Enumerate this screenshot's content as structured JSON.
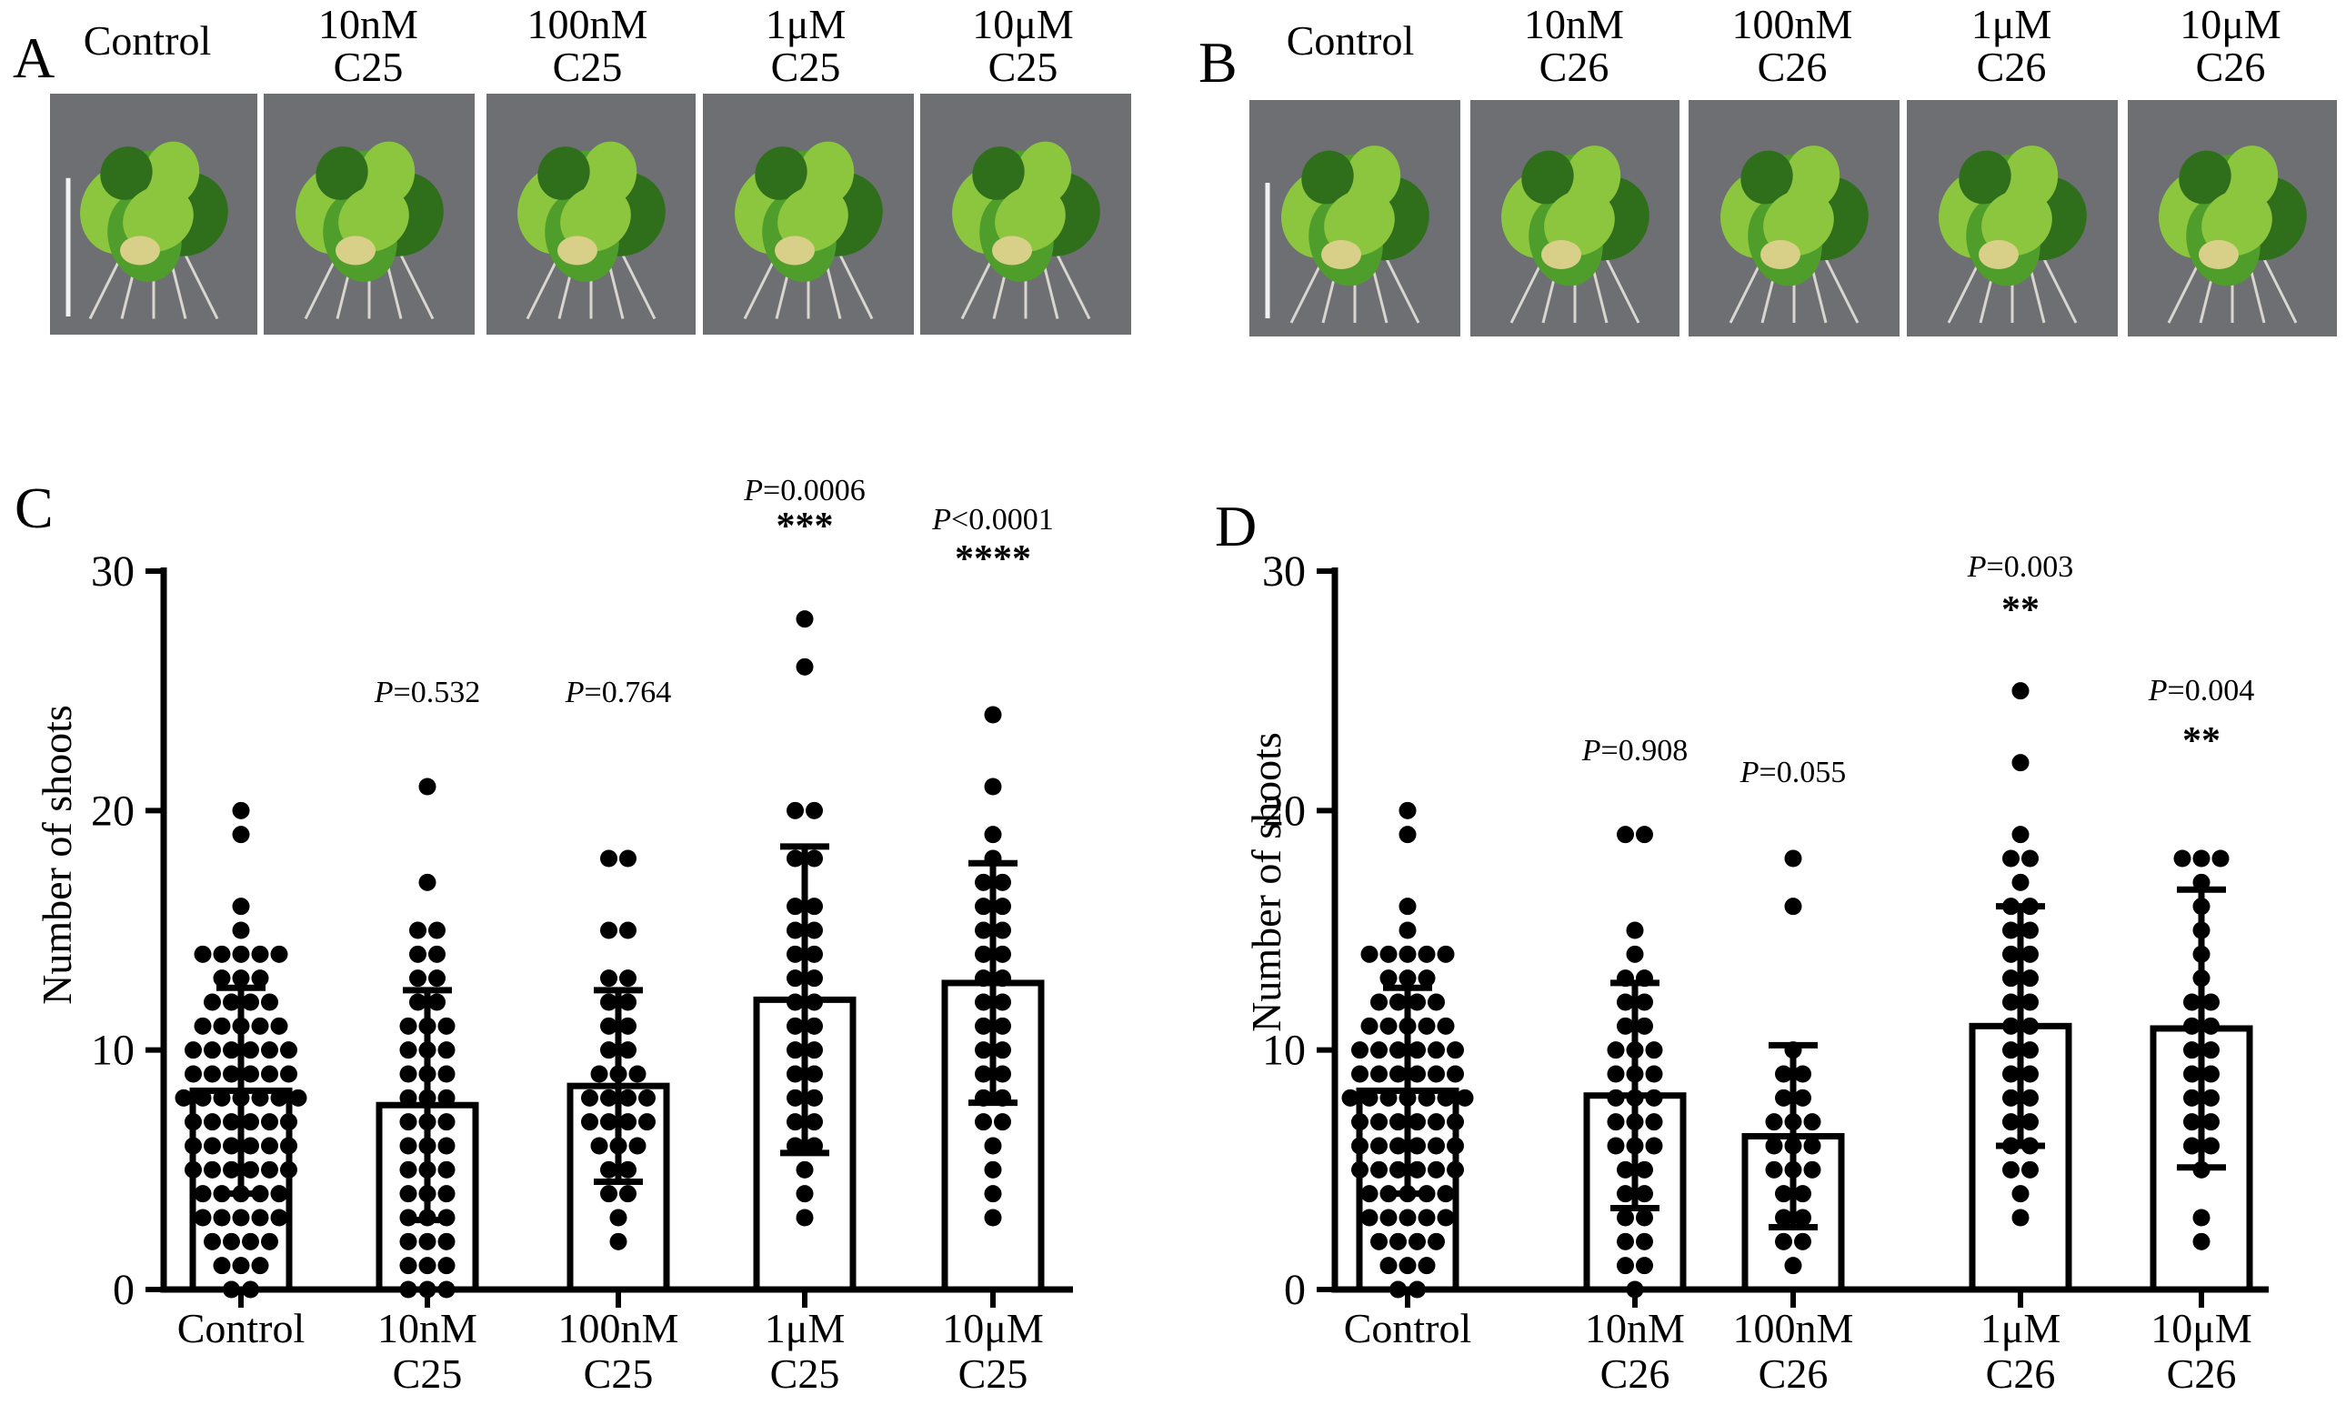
{
  "panels": {
    "A": {
      "letter": "A",
      "photos": [
        {
          "line1": "Control",
          "line2": ""
        },
        {
          "line1": "10nM",
          "line2": "C25"
        },
        {
          "line1": "100nM",
          "line2": "C25"
        },
        {
          "line1": "1μM",
          "line2": "C25"
        },
        {
          "line1": "10μM",
          "line2": "C25"
        }
      ]
    },
    "B": {
      "letter": "B",
      "photos": [
        {
          "line1": "Control",
          "line2": ""
        },
        {
          "line1": "10nM",
          "line2": "C26"
        },
        {
          "line1": "100nM",
          "line2": "C26"
        },
        {
          "line1": "1μM",
          "line2": "C26"
        },
        {
          "line1": "10μM",
          "line2": "C26"
        }
      ]
    }
  },
  "chart_data": [
    {
      "panel": "C",
      "type": "bar",
      "ylabel": "Number of shoots",
      "ylim": [
        0,
        30
      ],
      "yticks": [
        0,
        10,
        20,
        30
      ],
      "categories": [
        {
          "line1": "Control",
          "line2": ""
        },
        {
          "line1": "10nM",
          "line2": "C25"
        },
        {
          "line1": "100nM",
          "line2": "C25"
        },
        {
          "line1": "1μM",
          "line2": "C25"
        },
        {
          "line1": "10μM",
          "line2": "C25"
        }
      ],
      "means": [
        8.3,
        7.7,
        8.5,
        12.1,
        12.8
      ],
      "sd": [
        4.3,
        4.8,
        4.0,
        6.4,
        5.0
      ],
      "annotations": [
        {
          "p_label": "",
          "p_value": "",
          "stars": ""
        },
        {
          "p_label": "P",
          "p_value": "=0.532",
          "stars": ""
        },
        {
          "p_label": "P",
          "p_value": "=0.764",
          "stars": ""
        },
        {
          "p_label": "P",
          "p_value": "=0.0006",
          "stars": "***"
        },
        {
          "p_label": "P",
          "p_value": "<0.0001",
          "stars": "****"
        }
      ],
      "points": [
        [
          20,
          19,
          16,
          15,
          14,
          14,
          14,
          14,
          14,
          13,
          13,
          13,
          12,
          12,
          12,
          12,
          11,
          11,
          11,
          11,
          11,
          10,
          10,
          10,
          10,
          10,
          10,
          9,
          9,
          9,
          9,
          9,
          9,
          8,
          8,
          8,
          8,
          8,
          8,
          8,
          7,
          7,
          7,
          7,
          7,
          7,
          6,
          6,
          6,
          6,
          6,
          6,
          5,
          5,
          5,
          5,
          5,
          5,
          4,
          4,
          4,
          4,
          4,
          3,
          3,
          3,
          3,
          3,
          2,
          2,
          2,
          2,
          1,
          1,
          1,
          0,
          0
        ],
        [
          21,
          17,
          15,
          15,
          14,
          14,
          13,
          13,
          12,
          12,
          11,
          11,
          11,
          10,
          10,
          10,
          9,
          9,
          9,
          8,
          8,
          8,
          7,
          7,
          7,
          6,
          6,
          6,
          5,
          5,
          5,
          4,
          4,
          4,
          3,
          3,
          3,
          2,
          2,
          2,
          1,
          1,
          1,
          0,
          0,
          0
        ],
        [
          18,
          18,
          15,
          15,
          13,
          13,
          12,
          12,
          11,
          11,
          10,
          10,
          9,
          9,
          9,
          8,
          8,
          8,
          8,
          7,
          7,
          7,
          7,
          6,
          6,
          6,
          5,
          5,
          4,
          4,
          3,
          2
        ],
        [
          28,
          26,
          20,
          20,
          18,
          18,
          16,
          16,
          15,
          15,
          14,
          14,
          13,
          13,
          12,
          12,
          11,
          11,
          10,
          10,
          9,
          9,
          8,
          8,
          7,
          7,
          6,
          6,
          5,
          4,
          3
        ],
        [
          24,
          21,
          19,
          18,
          17,
          17,
          16,
          16,
          15,
          15,
          14,
          14,
          13,
          13,
          12,
          12,
          11,
          11,
          10,
          10,
          9,
          9,
          8,
          8,
          7,
          7,
          6,
          5,
          4,
          3
        ]
      ]
    },
    {
      "panel": "D",
      "type": "bar",
      "ylabel": "Number of shoots",
      "ylim": [
        0,
        30
      ],
      "yticks": [
        0,
        10,
        20,
        30
      ],
      "categories": [
        {
          "line1": "Control",
          "line2": ""
        },
        {
          "line1": "10nM",
          "line2": "C26"
        },
        {
          "line1": "100nM",
          "line2": "C26"
        },
        {
          "line1": "1μM",
          "line2": "C26"
        },
        {
          "line1": "10μM",
          "line2": "C26"
        }
      ],
      "means": [
        8.3,
        8.1,
        6.4,
        11.0,
        10.9
      ],
      "sd": [
        4.3,
        4.7,
        3.8,
        5.0,
        5.8
      ],
      "annotations": [
        {
          "p_label": "",
          "p_value": "",
          "stars": ""
        },
        {
          "p_label": "P",
          "p_value": "=0.908",
          "stars": ""
        },
        {
          "p_label": "P",
          "p_value": "=0.055",
          "stars": ""
        },
        {
          "p_label": "P",
          "p_value": "=0.003",
          "stars": "**"
        },
        {
          "p_label": "P",
          "p_value": "=0.004",
          "stars": "**"
        }
      ],
      "points": [
        [
          20,
          19,
          16,
          15,
          14,
          14,
          14,
          14,
          14,
          13,
          13,
          13,
          12,
          12,
          12,
          12,
          11,
          11,
          11,
          11,
          11,
          10,
          10,
          10,
          10,
          10,
          10,
          9,
          9,
          9,
          9,
          9,
          9,
          8,
          8,
          8,
          8,
          8,
          8,
          8,
          7,
          7,
          7,
          7,
          7,
          7,
          6,
          6,
          6,
          6,
          6,
          6,
          5,
          5,
          5,
          5,
          5,
          5,
          4,
          4,
          4,
          4,
          4,
          3,
          3,
          3,
          3,
          3,
          2,
          2,
          2,
          2,
          1,
          1,
          1,
          0,
          0
        ],
        [
          19,
          19,
          15,
          14,
          13,
          13,
          12,
          12,
          11,
          11,
          10,
          10,
          10,
          9,
          9,
          9,
          8,
          8,
          8,
          7,
          7,
          7,
          6,
          6,
          6,
          5,
          5,
          4,
          4,
          3,
          3,
          2,
          2,
          1,
          1,
          0
        ],
        [
          18,
          16,
          10,
          9,
          9,
          8,
          8,
          7,
          7,
          7,
          6,
          6,
          6,
          5,
          5,
          5,
          4,
          4,
          3,
          3,
          2,
          2,
          1
        ],
        [
          25,
          22,
          19,
          18,
          18,
          17,
          16,
          16,
          15,
          15,
          14,
          14,
          13,
          13,
          12,
          12,
          11,
          11,
          10,
          10,
          9,
          9,
          8,
          8,
          7,
          7,
          6,
          6,
          5,
          5,
          4,
          3
        ],
        [
          18,
          18,
          18,
          17,
          16,
          15,
          14,
          13,
          12,
          12,
          11,
          11,
          10,
          10,
          9,
          9,
          8,
          8,
          7,
          7,
          6,
          6,
          5,
          3,
          2
        ]
      ]
    }
  ]
}
